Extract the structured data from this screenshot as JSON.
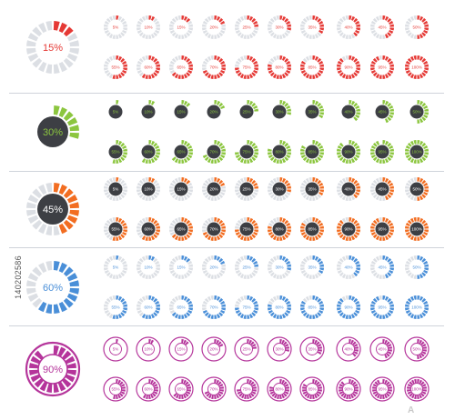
{
  "stock": {
    "id_text": "140202586",
    "logo_text": "Adobe Stock"
  },
  "sections": [
    {
      "name": "red",
      "style": "white-center",
      "accent": "#e53935",
      "track": "#dcdfe4",
      "label_color": "#e53935",
      "large_label": "15%",
      "large_value": 15,
      "top_row": [
        {
          "value": 5,
          "label": "5%"
        },
        {
          "value": 10,
          "label": "10%"
        },
        {
          "value": 15,
          "label": "15%"
        },
        {
          "value": 20,
          "label": "20%"
        },
        {
          "value": 25,
          "label": "25%"
        },
        {
          "value": 30,
          "label": "30%"
        },
        {
          "value": 35,
          "label": "35%"
        },
        {
          "value": 40,
          "label": "40%"
        },
        {
          "value": 45,
          "label": "45%"
        },
        {
          "value": 50,
          "label": "50%"
        }
      ],
      "bottom_row": [
        {
          "value": 55,
          "label": "55%"
        },
        {
          "value": 60,
          "label": "60%"
        },
        {
          "value": 65,
          "label": "65%"
        },
        {
          "value": 70,
          "label": "70%"
        },
        {
          "value": 75,
          "label": "75%"
        },
        {
          "value": 80,
          "label": "80%"
        },
        {
          "value": 85,
          "label": "85%"
        },
        {
          "value": 90,
          "label": "90%"
        },
        {
          "value": 95,
          "label": "95%"
        },
        {
          "value": 100,
          "label": "100%"
        }
      ]
    },
    {
      "name": "green",
      "style": "dark-center",
      "accent": "#8cc63f",
      "track": "#ffffff",
      "label_color": "#8cc63f",
      "large_label": "30%",
      "large_value": 30,
      "top_row": [
        {
          "value": 5,
          "label": "5%"
        },
        {
          "value": 10,
          "label": "10%"
        },
        {
          "value": 15,
          "label": "15%"
        },
        {
          "value": 20,
          "label": "20%"
        },
        {
          "value": 25,
          "label": "25%"
        },
        {
          "value": 30,
          "label": "30%"
        },
        {
          "value": 35,
          "label": "35%"
        },
        {
          "value": 40,
          "label": "40%"
        },
        {
          "value": 45,
          "label": "45%"
        },
        {
          "value": 50,
          "label": "50%"
        }
      ],
      "bottom_row": [
        {
          "value": 55,
          "label": "55%"
        },
        {
          "value": 60,
          "label": "60%"
        },
        {
          "value": 65,
          "label": "65%"
        },
        {
          "value": 70,
          "label": "70%"
        },
        {
          "value": 75,
          "label": "75%"
        },
        {
          "value": 80,
          "label": "80%"
        },
        {
          "value": 85,
          "label": "85%"
        },
        {
          "value": 90,
          "label": "90%"
        },
        {
          "value": 95,
          "label": "95%"
        },
        {
          "value": 100,
          "label": "100%"
        }
      ]
    },
    {
      "name": "orange",
      "style": "dark-center-track",
      "accent": "#f26d21",
      "track": "#dcdfe4",
      "label_color": "#ffffff",
      "large_label": "45%",
      "large_value": 45,
      "top_row": [
        {
          "value": 5,
          "label": "5%"
        },
        {
          "value": 10,
          "label": "10%"
        },
        {
          "value": 15,
          "label": "15%"
        },
        {
          "value": 20,
          "label": "20%"
        },
        {
          "value": 25,
          "label": "25%"
        },
        {
          "value": 30,
          "label": "30%"
        },
        {
          "value": 35,
          "label": "35%"
        },
        {
          "value": 40,
          "label": "40%"
        },
        {
          "value": 45,
          "label": "45%"
        },
        {
          "value": 50,
          "label": "50%"
        }
      ],
      "bottom_row": [
        {
          "value": 55,
          "label": "55%"
        },
        {
          "value": 60,
          "label": "60%"
        },
        {
          "value": 65,
          "label": "65%"
        },
        {
          "value": 70,
          "label": "70%"
        },
        {
          "value": 75,
          "label": "75%"
        },
        {
          "value": 80,
          "label": "80%"
        },
        {
          "value": 85,
          "label": "85%"
        },
        {
          "value": 90,
          "label": "90%"
        },
        {
          "value": 95,
          "label": "95%"
        },
        {
          "value": 100,
          "label": "100%"
        }
      ]
    },
    {
      "name": "blue",
      "style": "white-center",
      "accent": "#4a8fd8",
      "track": "#dcdfe4",
      "label_color": "#4a8fd8",
      "large_label": "60%",
      "large_value": 60,
      "top_row": [
        {
          "value": 5,
          "label": "5%"
        },
        {
          "value": 10,
          "label": "10%"
        },
        {
          "value": 15,
          "label": "15%"
        },
        {
          "value": 20,
          "label": "20%"
        },
        {
          "value": 25,
          "label": "25%"
        },
        {
          "value": 30,
          "label": "30%"
        },
        {
          "value": 35,
          "label": "35%"
        },
        {
          "value": 40,
          "label": "40%"
        },
        {
          "value": 45,
          "label": "45%"
        },
        {
          "value": 50,
          "label": "50%"
        }
      ],
      "bottom_row": [
        {
          "value": 55,
          "label": "55%"
        },
        {
          "value": 60,
          "label": "60%"
        },
        {
          "value": 65,
          "label": "65%"
        },
        {
          "value": 70,
          "label": "70%"
        },
        {
          "value": 75,
          "label": "75%"
        },
        {
          "value": 80,
          "label": "80%"
        },
        {
          "value": 85,
          "label": "85%"
        },
        {
          "value": 90,
          "label": "90%"
        },
        {
          "value": 95,
          "label": "95%"
        },
        {
          "value": 100,
          "label": "100%"
        }
      ]
    },
    {
      "name": "magenta",
      "style": "outlined",
      "accent": "#b5359b",
      "track": "#ffffff",
      "label_color": "#b5359b",
      "large_label": "90%",
      "large_value": 90,
      "top_row": [
        {
          "value": 5,
          "label": "5%"
        },
        {
          "value": 10,
          "label": "10%"
        },
        {
          "value": 15,
          "label": "15%"
        },
        {
          "value": 20,
          "label": "20%"
        },
        {
          "value": 25,
          "label": "25%"
        },
        {
          "value": 30,
          "label": "30%"
        },
        {
          "value": 35,
          "label": "35%"
        },
        {
          "value": 40,
          "label": "40%"
        },
        {
          "value": 45,
          "label": "45%"
        },
        {
          "value": 50,
          "label": "50%"
        }
      ],
      "bottom_row": [
        {
          "value": 55,
          "label": "55%"
        },
        {
          "value": 60,
          "label": "60%"
        },
        {
          "value": 65,
          "label": "65%"
        },
        {
          "value": 70,
          "label": "70%"
        },
        {
          "value": 75,
          "label": "75%"
        },
        {
          "value": 80,
          "label": "80%"
        },
        {
          "value": 85,
          "label": "85%"
        },
        {
          "value": 90,
          "label": "90%"
        },
        {
          "value": 95,
          "label": "95%"
        },
        {
          "value": 100,
          "label": "100%"
        }
      ]
    }
  ]
}
